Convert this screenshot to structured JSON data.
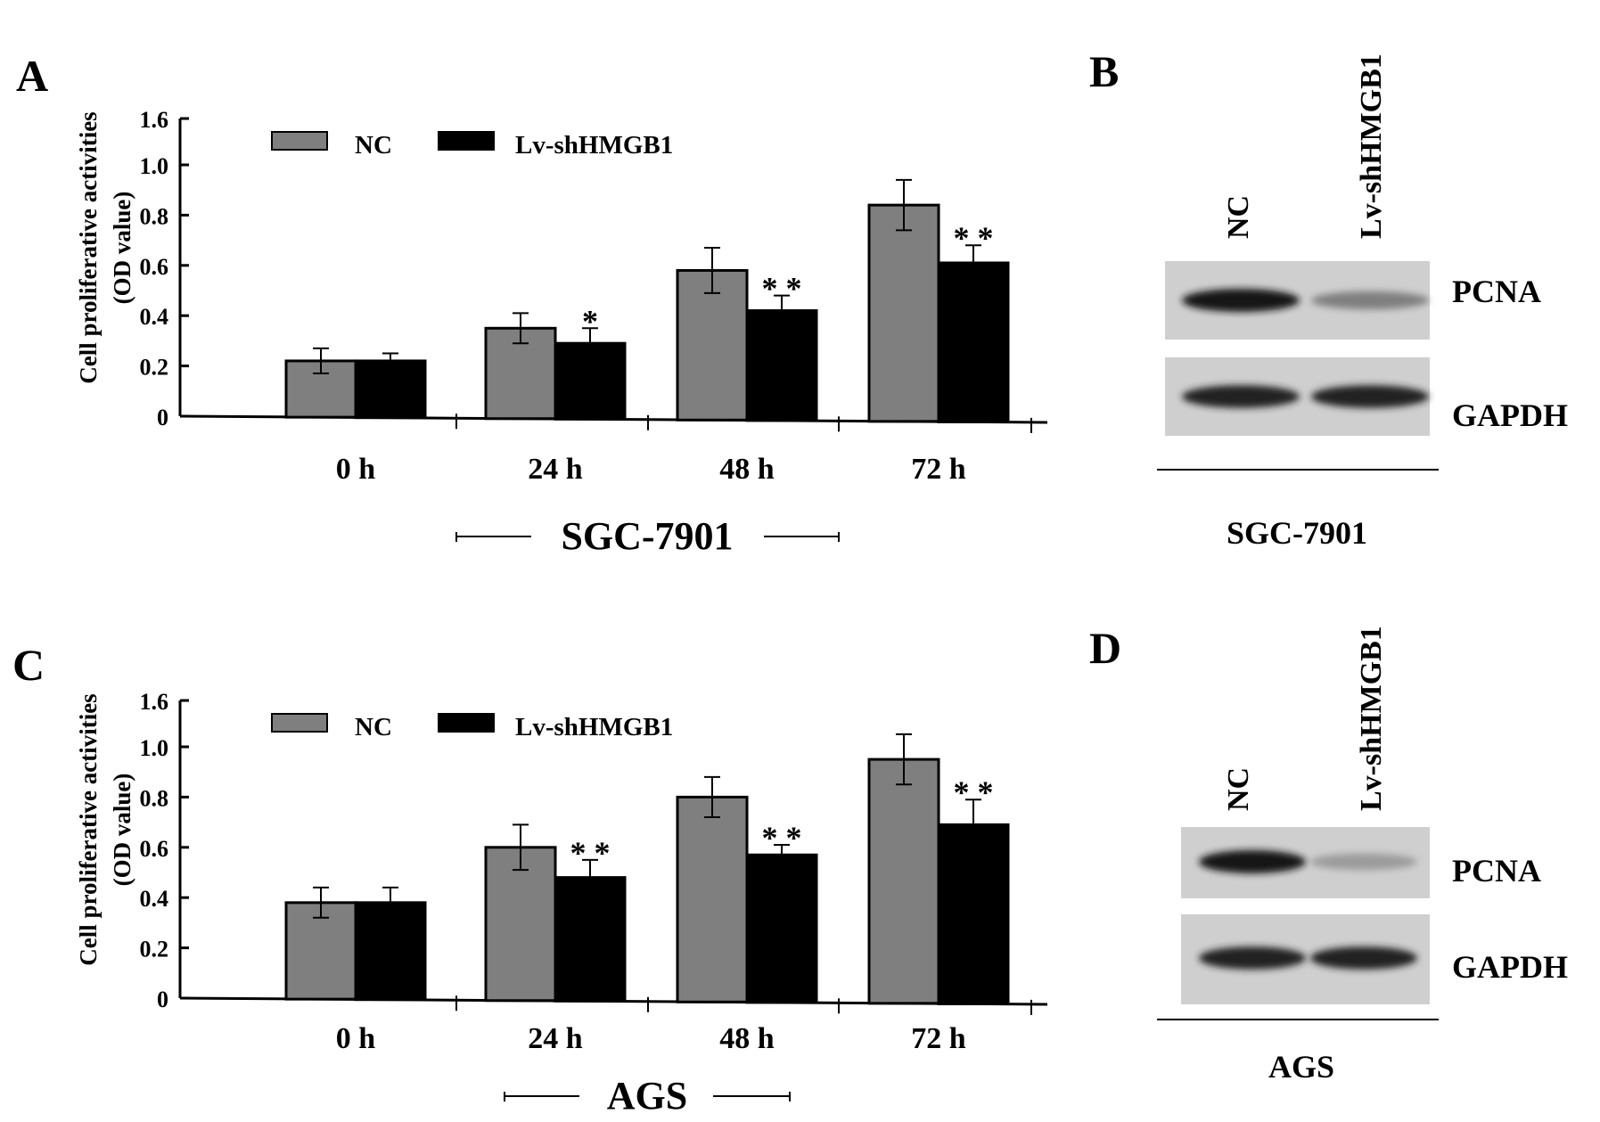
{
  "panels": {
    "A": {
      "letter": "A",
      "ytick_top": "1.6"
    },
    "B": {
      "letter": "B"
    },
    "C": {
      "letter": "C",
      "ytick_top": "1.6"
    },
    "D": {
      "letter": "D"
    }
  },
  "y_axis_title": [
    "Cell proliferative activities",
    "(OD value)"
  ],
  "ytick_labels": [
    "0",
    "0.2",
    "0.4",
    "0.6",
    "0.8",
    "1.0"
  ],
  "legend": {
    "nc": "NC",
    "lv": "Lv-shHMGB1"
  },
  "colors": {
    "nc": "#7f7f7f",
    "lv": "#000000"
  },
  "chart_data": [
    {
      "type": "bar",
      "panel": "A",
      "group_label": "SGC-7901",
      "categories": [
        "0 h",
        "24 h",
        "48 h",
        "72 h"
      ],
      "series": [
        {
          "name": "NC",
          "values": [
            0.22,
            0.35,
            0.58,
            0.84
          ],
          "errors": [
            0.05,
            0.06,
            0.09,
            0.1
          ]
        },
        {
          "name": "Lv-shHMGB1",
          "values": [
            0.22,
            0.29,
            0.42,
            0.61
          ],
          "errors": [
            0.03,
            0.06,
            0.06,
            0.07
          ]
        }
      ],
      "significance": [
        "",
        "*",
        "* *",
        "* *"
      ],
      "ylim": [
        0,
        1.0
      ],
      "yticks": [
        0,
        0.2,
        0.4,
        0.6,
        0.8,
        1.0
      ],
      "ylabel": "Cell proliferative activities (OD value)",
      "legend_position": "top-left"
    },
    {
      "type": "bar",
      "panel": "C",
      "group_label": "AGS",
      "categories": [
        "0 h",
        "24 h",
        "48 h",
        "72 h"
      ],
      "series": [
        {
          "name": "NC",
          "values": [
            0.38,
            0.6,
            0.8,
            0.95
          ],
          "errors": [
            0.06,
            0.09,
            0.08,
            0.1
          ]
        },
        {
          "name": "Lv-shHMGB1",
          "values": [
            0.38,
            0.48,
            0.57,
            0.69
          ],
          "errors": [
            0.06,
            0.07,
            0.04,
            0.1
          ]
        }
      ],
      "significance": [
        "",
        "* *",
        "* *",
        "* *"
      ],
      "ylim": [
        0,
        1.0
      ],
      "yticks": [
        0,
        0.2,
        0.4,
        0.6,
        0.8,
        1.0
      ],
      "ylabel": "Cell proliferative activities (OD value)",
      "legend_position": "top-left"
    }
  ],
  "blots": [
    {
      "panel": "B",
      "lanes": [
        "NC",
        "Lv-shHMGB1"
      ],
      "bands": [
        {
          "label": "PCNA",
          "intensity": [
            1.0,
            0.45
          ]
        },
        {
          "label": "GAPDH",
          "intensity": [
            0.95,
            0.95
          ]
        }
      ],
      "cell_line": "SGC-7901"
    },
    {
      "panel": "D",
      "lanes": [
        "NC",
        "Lv-shHMGB1"
      ],
      "bands": [
        {
          "label": "PCNA",
          "intensity": [
            1.0,
            0.3
          ]
        },
        {
          "label": "GAPDH",
          "intensity": [
            0.95,
            0.95
          ]
        }
      ],
      "cell_line": "AGS"
    }
  ]
}
